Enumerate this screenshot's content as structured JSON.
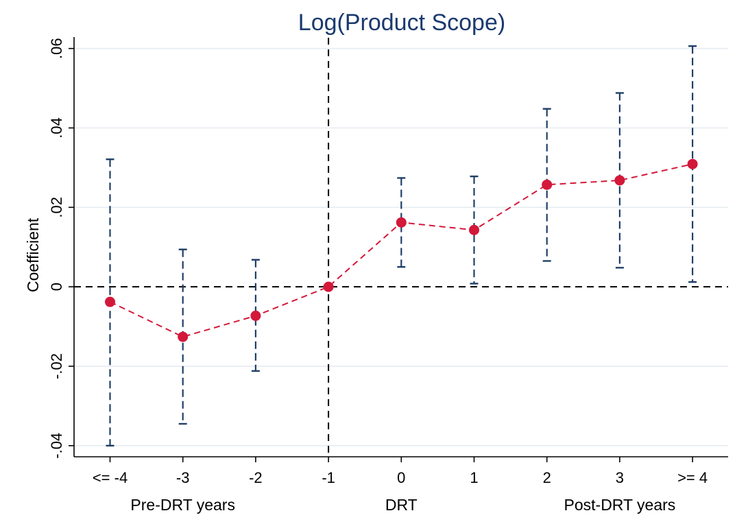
{
  "chart_data": {
    "type": "line",
    "title": "Log(Product Scope)",
    "xlabel": "",
    "ylabel": "Coefficient",
    "categories": [
      "<= -4",
      "-3",
      "-2",
      "-1",
      "0",
      "1",
      "2",
      "3",
      ">= 4"
    ],
    "x_group_labels": [
      {
        "label": "Pre-DRT years",
        "center": -3
      },
      {
        "label": "DRT",
        "center": 0
      },
      {
        "label": "Post-DRT years",
        "center": 3
      }
    ],
    "yticks": [
      -0.04,
      -0.02,
      0,
      0.02,
      0.04,
      0.06
    ],
    "ytick_labels": [
      "-.04",
      "-.02",
      "0",
      ".02",
      ".04",
      ".06"
    ],
    "ylim": [
      -0.0428,
      0.0615
    ],
    "grid": true,
    "reference_lines": {
      "horizontal_at": 0,
      "vertical_at_category": "-1"
    },
    "series": [
      {
        "name": "Coefficient",
        "values": [
          -0.0038,
          -0.0126,
          -0.0073,
          0.0,
          0.0162,
          0.0143,
          0.0257,
          0.0268,
          0.0309
        ],
        "ci_lower": [
          -0.04,
          -0.0345,
          -0.0212,
          0.0,
          0.005,
          0.0008,
          0.0065,
          0.0048,
          0.0012
        ],
        "ci_upper": [
          0.0321,
          0.0094,
          0.0068,
          0.0,
          0.0274,
          0.0278,
          0.0448,
          0.0488,
          0.0606
        ]
      }
    ],
    "colors": {
      "point": "#d3183a",
      "line": "#d3183a",
      "ci": "#1f3f66",
      "grid": "#e6ecf2",
      "reference": "#000000",
      "title": "#1a3a6e"
    }
  }
}
